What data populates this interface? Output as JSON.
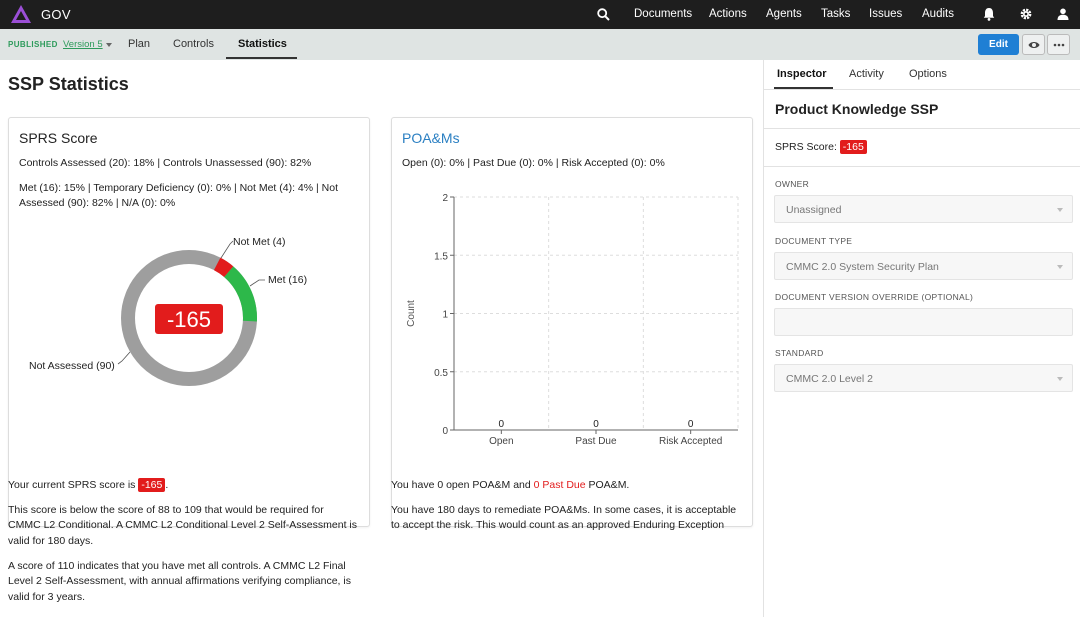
{
  "app": {
    "name": "GOV"
  },
  "colors": {
    "topbar": "#1e1e1e",
    "accent": "#1f7fd4",
    "published": "#2e9b5c",
    "danger": "#e21c1c",
    "met": "#2db84a",
    "gray": "#9e9e9e"
  },
  "nav": [
    "Documents",
    "Actions",
    "Agents",
    "Tasks",
    "Issues",
    "Audits"
  ],
  "subbar": {
    "status": "PUBLISHED",
    "version": "Version 5",
    "tabs": [
      "Plan",
      "Controls",
      "Statistics"
    ],
    "active_tab": "Statistics",
    "edit_label": "Edit"
  },
  "page": {
    "title": "SSP Statistics"
  },
  "sprs": {
    "title": "SPRS Score",
    "line1": "Controls Assessed (20): 18% | Controls Unassessed (90): 82%",
    "line2a": "Met (16): 15% | Temporary Deficiency (0): 0% | Not Met (4): 4% | Not",
    "line2b": "Assessed (90): 82% | N/A (0): 0%",
    "score": "-165"
  },
  "chart_data": [
    {
      "type": "pie",
      "title": "SPRS Score",
      "center_label": "-165",
      "categories": [
        "Met (16)",
        "Not Met (4)",
        "Not Assessed (90)"
      ],
      "values": [
        16,
        4,
        90
      ]
    },
    {
      "type": "bar",
      "title": "POA&Ms",
      "categories": [
        "Open",
        "Past Due",
        "Risk Accepted"
      ],
      "values": [
        0,
        0,
        0
      ],
      "ylabel": "Count",
      "ylim": [
        0,
        2
      ],
      "yticks": [
        "0",
        "0.5",
        "1",
        "1.5",
        "2"
      ],
      "grid": true
    }
  ],
  "poa": {
    "title": "POA&Ms",
    "line1": "Open (0): 0% | Past Due (0): 0% | Risk Accepted (0): 0%"
  },
  "sprs_text": {
    "p1_pre": "Your current SPRS score is ",
    "p1_badge": "-165",
    "p1_post": ".",
    "p2a": "This score is below the score of 88 to 109 that would be required for",
    "p2b": "CMMC L2 Conditional. A CMMC L2 Conditional Level 2 Self-Assessment is",
    "p2c": "valid for 180 days.",
    "p3a": "A score of 110 indicates that you have met all controls. A CMMC L2 Final",
    "p3b": "Level 2 Self-Assessment, with annual affirmations verifying compliance, is",
    "p3c": "valid for 3 years."
  },
  "poa_text": {
    "p1_pre": "You have 0 open POA&M and ",
    "p1_red": "0 Past Due",
    "p1_post": " POA&M.",
    "p2a": "You have 180 days to remediate POA&Ms. In some cases, it is acceptable",
    "p2b": "to accept the risk. This would count as an approved Enduring Exception"
  },
  "inspector": {
    "tabs": [
      "Inspector",
      "Activity",
      "Options"
    ],
    "title": "Product Knowledge SSP",
    "score_label": "SPRS Score:",
    "score": "-165",
    "owner_label": "OWNER",
    "owner_value": "Unassigned",
    "doctype_label": "DOCUMENT TYPE",
    "doctype_value": "CMMC 2.0 System Security Plan",
    "override_label": "DOCUMENT VERSION OVERRIDE (OPTIONAL)",
    "override_value": "",
    "standard_label": "STANDARD",
    "standard_value": "CMMC 2.0 Level 2"
  }
}
